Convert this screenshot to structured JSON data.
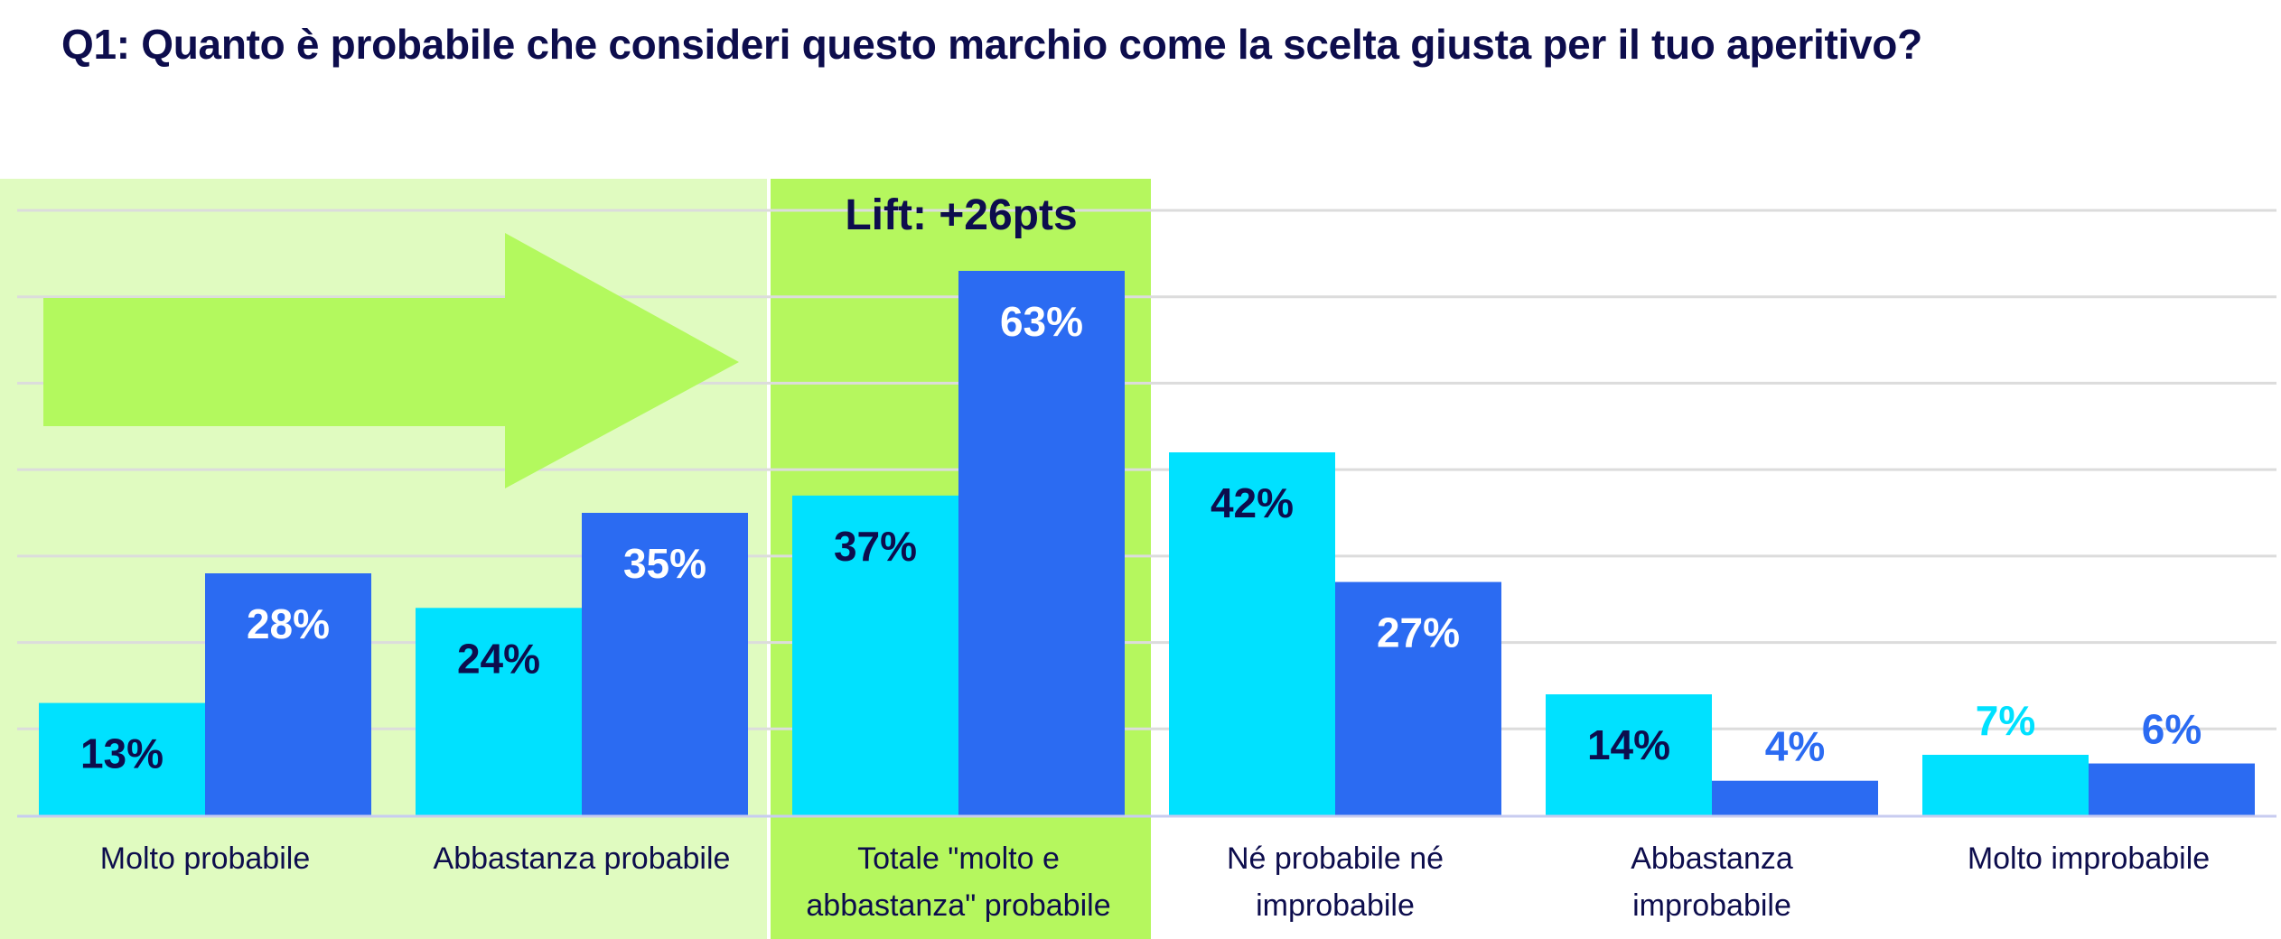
{
  "chart_data": {
    "type": "bar",
    "title": "Q1: Quanto è probabile che consideri questo marchio come la scelta giusta per il tuo aperitivo?",
    "categories": [
      "Molto probabile",
      "Abbastanza probabile",
      "Totale \"molto e abbastanza\" probabile",
      "Né probabile né improbabile",
      "Abbastanza improbabile",
      "Molto improbabile"
    ],
    "category_lines": [
      [
        "Molto probabile"
      ],
      [
        "Abbastanza probabile"
      ],
      [
        "Totale \"molto e",
        "abbastanza\" probabile"
      ],
      [
        "Né probabile né",
        "improbabile"
      ],
      [
        "Abbastanza",
        "improbabile"
      ],
      [
        "Molto improbabile"
      ]
    ],
    "series": [
      {
        "values": [
          13,
          24,
          37,
          42,
          14,
          7
        ],
        "labels": [
          "13%",
          "24%",
          "37%",
          "42%",
          "14%",
          "7%"
        ],
        "color": "#00E1FF"
      },
      {
        "values": [
          28,
          35,
          63,
          27,
          4,
          6
        ],
        "labels": [
          "28%",
          "35%",
          "63%",
          "27%",
          "4%",
          "6%"
        ],
        "color": "#2B6BF2"
      }
    ],
    "ylim": [
      0,
      70
    ],
    "grid": true,
    "annotation": "Lift: +26pts",
    "highlight_colors": {
      "probable_zone": "#E0FBC0",
      "total_zone": "#B5F75E",
      "arrow": "#B3F95E"
    },
    "text_color": "#0D0D4D"
  }
}
